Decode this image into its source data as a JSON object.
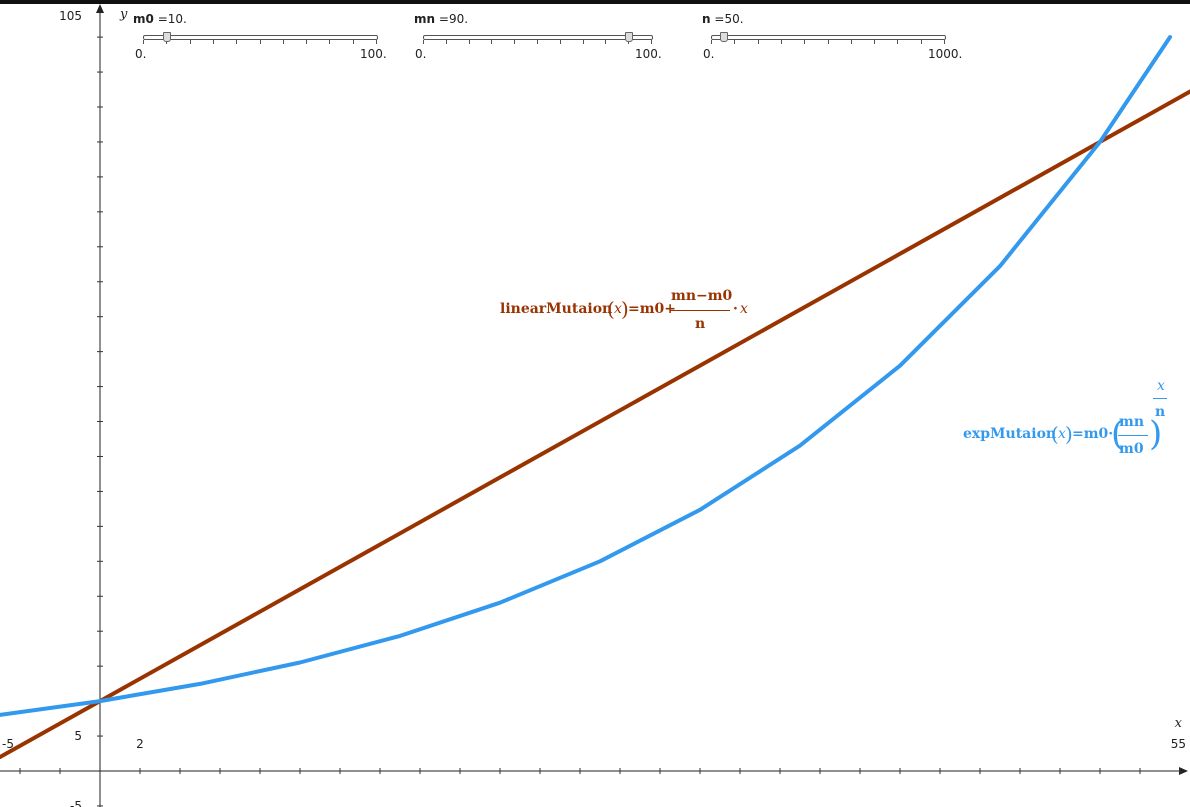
{
  "sliders": [
    {
      "name": "m0",
      "eq": "=",
      "value_text": "10.",
      "min_text": "0.",
      "max_text": "100.",
      "min": 0,
      "max": 100,
      "value": 10
    },
    {
      "name": "mn",
      "eq": "=",
      "value_text": "90.",
      "min_text": "0.",
      "max_text": "100.",
      "min": 0,
      "max": 100,
      "value": 90
    },
    {
      "name": "n",
      "eq": "=",
      "value_text": "50.",
      "min_text": "0.",
      "max_text": "1000.",
      "min": 0,
      "max": 1000,
      "value": 50
    }
  ],
  "labels": {
    "linear": {
      "name": "linearMutaion",
      "var": "x",
      "eq": "=m0+",
      "num": "mn−m0",
      "den": "n",
      "dot": "·",
      "tail_var": "x"
    },
    "exp": {
      "name": "expMutaion",
      "var": "x",
      "eq": "=m0·",
      "num": "mn",
      "den": "m0",
      "exp_num": "x",
      "exp_den": "n"
    }
  },
  "chart_data": {
    "type": "line",
    "xlabel": "x",
    "ylabel": "y",
    "xlim": [
      -5,
      55
    ],
    "ylim": [
      -5,
      105
    ],
    "x_tick_labels": [
      {
        "value": -5,
        "text": "-5"
      },
      {
        "value": 2,
        "text": "2"
      },
      {
        "value": 55,
        "text": "55"
      }
    ],
    "y_tick_labels": [
      {
        "value": -5,
        "text": "-5"
      },
      {
        "value": 5,
        "text": "5"
      },
      {
        "value": 105,
        "text": "105"
      }
    ],
    "grid": false,
    "series": [
      {
        "name": "linearMutaion",
        "color": "#993300",
        "x": [
          -5,
          0,
          10,
          20,
          30,
          40,
          50,
          55
        ],
        "y": [
          2.0,
          10.0,
          26.0,
          42.0,
          58.0,
          74.0,
          90.0,
          98.0
        ]
      },
      {
        "name": "expMutaion",
        "color": "#3399ee",
        "x": [
          -5,
          0,
          5,
          10,
          15,
          20,
          25,
          30,
          35,
          40,
          45,
          50,
          53.5
        ],
        "y": [
          8.03,
          10.0,
          12.46,
          15.52,
          19.33,
          24.08,
          30.0,
          37.37,
          46.55,
          57.99,
          72.24,
          90.0,
          105.0
        ]
      }
    ]
  }
}
